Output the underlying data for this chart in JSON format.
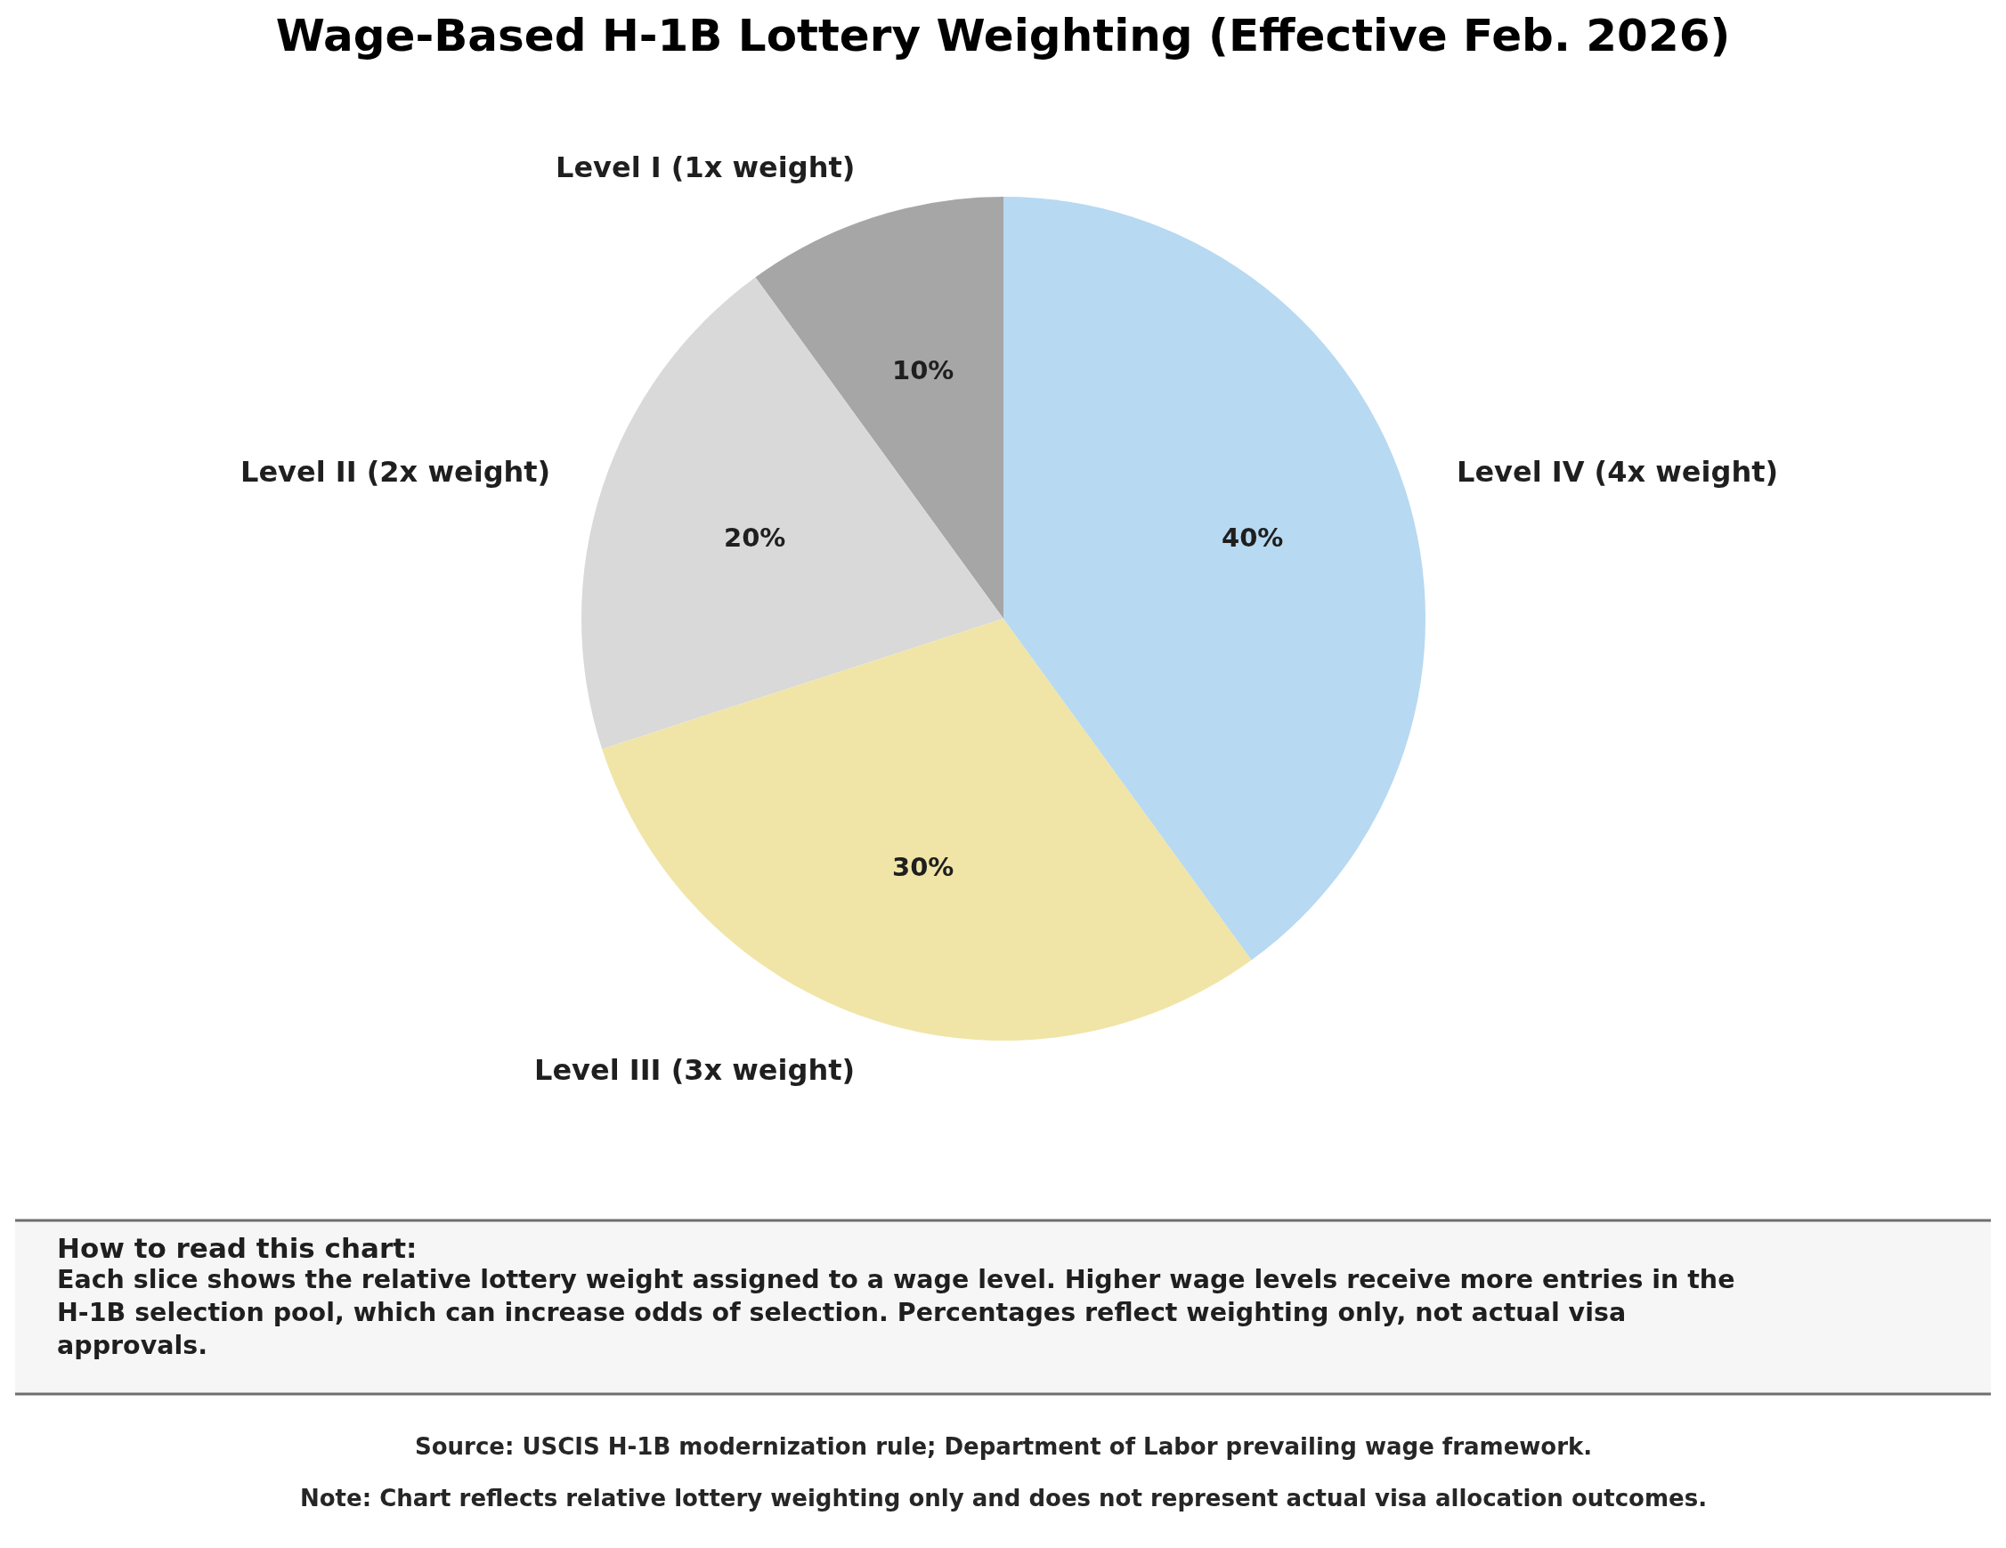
{
  "chart_data": {
    "type": "pie",
    "title": "Wage-Based H-1B Lottery Weighting (Effective Feb. 2026)",
    "categories": [
      "Level I (1x weight)",
      "Level II (2x weight)",
      "Level III (3x weight)",
      "Level IV (4x weight)"
    ],
    "values": [
      10,
      20,
      30,
      40
    ],
    "colors": [
      "#a6a6a6",
      "#d9d9d9",
      "#f0e5a7",
      "#b7d9f1"
    ],
    "value_labels": [
      "10%",
      "20%",
      "30%",
      "40%"
    ],
    "annotations": [
      "How to read this chart:",
      "Each slice shows the relative lottery weight assigned to a wage level. Higher wage levels receive more entries in the H-1B selection pool, which can increase odds of selection. Percentages reflect weighting only, not actual visa approvals.",
      "Source: USCIS H-1B modernization rule; Department of Labor prevailing wage framework.",
      "Note: Chart reflects relative lottery weighting only and does not represent actual visa allocation outcomes."
    ]
  }
}
